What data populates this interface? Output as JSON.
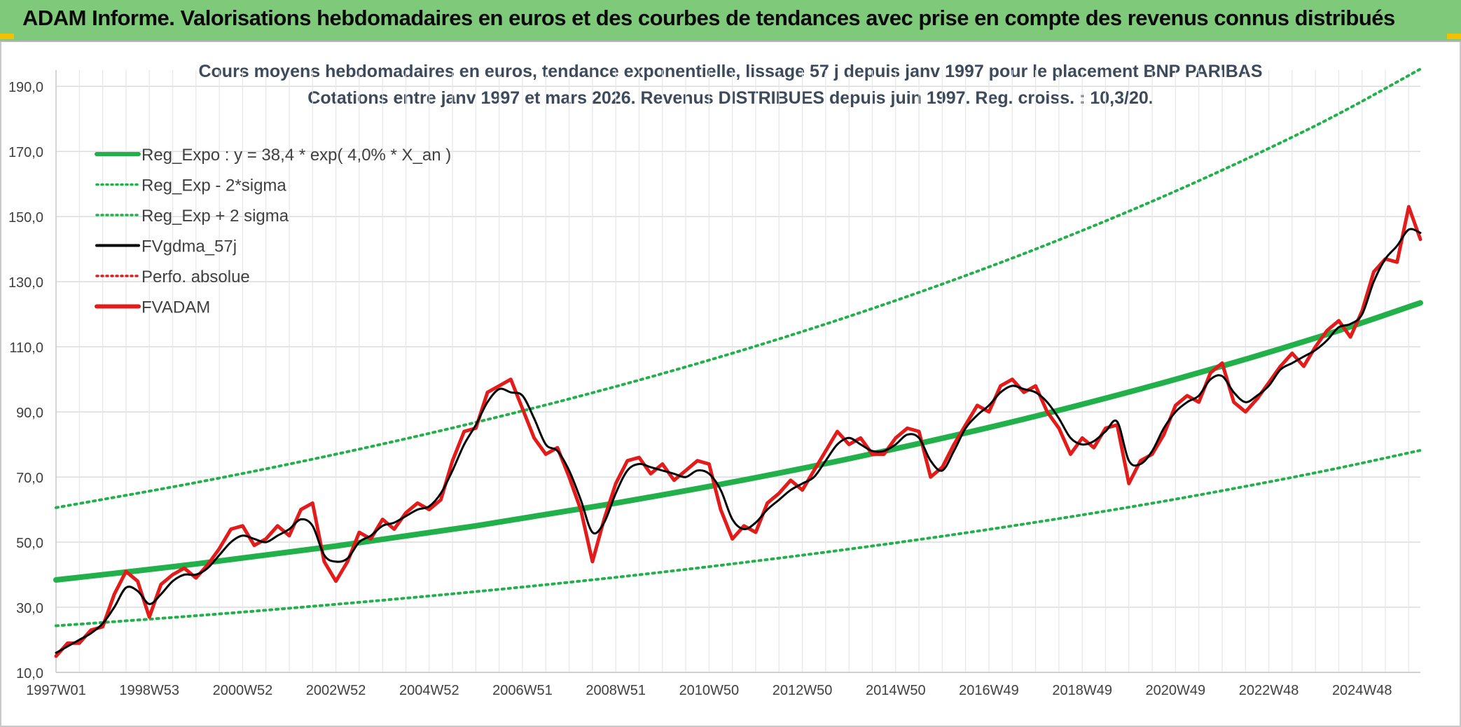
{
  "header": {
    "title": "ADAM Informe. Valorisations hebdomadaires en euros et des courbes de tendances avec prise en compte des revenus connus distribués"
  },
  "chart_data": {
    "type": "line",
    "title_lines": [
      "Cours moyens hebdomadaires en euros, tendance exponentielle, lissage 57 j depuis janv 1997 pour le placement BNP PARIBAS",
      "Cotations entre janv 1997 et mars 2026. Revenus DISTRIBUES depuis juin 1997. Reg. croiss. : 10,3/20."
    ],
    "xlabel": "",
    "ylabel": "",
    "ylim": [
      10,
      195
    ],
    "xlim": [
      1997.0,
      2026.25
    ],
    "y_ticks": [
      "10,0",
      "30,0",
      "50,0",
      "70,0",
      "90,0",
      "110,0",
      "130,0",
      "150,0",
      "170,0",
      "190,0"
    ],
    "y_tick_values": [
      10,
      30,
      50,
      70,
      90,
      110,
      130,
      150,
      170,
      190
    ],
    "x_ticks": [
      "1997W01",
      "1998W53",
      "2000W52",
      "2002W52",
      "2004W52",
      "2006W51",
      "2008W51",
      "2010W50",
      "2012W50",
      "2014W50",
      "2016W49",
      "2018W49",
      "2020W49",
      "2022W48",
      "2024W48"
    ],
    "x_tick_values": [
      1997.0,
      1999.0,
      2001.0,
      2003.0,
      2005.0,
      2007.0,
      2009.0,
      2011.0,
      2013.0,
      2015.0,
      2017.0,
      2019.0,
      2021.0,
      2023.0,
      2025.0
    ],
    "grid": true,
    "legend_position": "top-left",
    "legend": [
      {
        "label": "Reg_Expo : y = 38,4 * exp( 4,0% *  X_an )",
        "color": "#22b04b",
        "style": "thick"
      },
      {
        "label": "Reg_Exp - 2*sigma",
        "color": "#22b04b",
        "style": "dotted"
      },
      {
        "label": "Reg_Exp + 2 sigma",
        "color": "#22b04b",
        "style": "dotted"
      },
      {
        "label": "FVgdma_57j",
        "color": "#000000",
        "style": "solid"
      },
      {
        "label": "Perfo. absolue",
        "color": "#e31b1b",
        "style": "dotted"
      },
      {
        "label": "FVADAM",
        "color": "#e31b1b",
        "style": "thick"
      }
    ],
    "series": [
      {
        "name": "Reg_Expo : y = 38,4 * exp( 4,0% *  X_an )",
        "color": "#22b04b",
        "x": [
          1997.0,
          2000.0,
          2003.0,
          2006.0,
          2009.0,
          2012.0,
          2015.0,
          2018.0,
          2021.0,
          2024.0,
          2026.25
        ],
        "values": [
          38.4,
          43.3,
          48.8,
          55.0,
          62.0,
          69.8,
          78.7,
          88.7,
          100.0,
          112.7,
          123.5
        ]
      },
      {
        "name": "Reg_Exp - 2*sigma",
        "color": "#22b04b",
        "x": [
          1997.0,
          2000.0,
          2003.0,
          2006.0,
          2009.0,
          2012.0,
          2015.0,
          2018.0,
          2021.0,
          2024.0,
          2026.25
        ],
        "values": [
          24.3,
          27.4,
          30.9,
          34.8,
          39.2,
          44.2,
          49.8,
          56.1,
          63.2,
          71.3,
          78.2
        ]
      },
      {
        "name": "Reg_Exp + 2 sigma",
        "color": "#22b04b",
        "x": [
          1997.0,
          2000.0,
          2003.0,
          2006.0,
          2009.0,
          2012.0,
          2015.0,
          2018.0,
          2021.0,
          2024.0,
          2026.25
        ],
        "values": [
          60.6,
          68.3,
          77.0,
          86.8,
          97.8,
          110.2,
          124.2,
          140.0,
          157.8,
          177.9,
          195.3
        ]
      },
      {
        "name": "FVgdma_57j",
        "color": "#000000",
        "x": [
          1997.0,
          1997.25,
          1997.5,
          1997.75,
          1998.0,
          1998.25,
          1998.5,
          1998.75,
          1999.0,
          1999.25,
          1999.5,
          1999.75,
          2000.0,
          2000.25,
          2000.5,
          2000.75,
          2001.0,
          2001.25,
          2001.5,
          2001.75,
          2002.0,
          2002.25,
          2002.5,
          2002.75,
          2003.0,
          2003.25,
          2003.5,
          2003.75,
          2004.0,
          2004.25,
          2004.5,
          2004.75,
          2005.0,
          2005.25,
          2005.5,
          2005.75,
          2006.0,
          2006.25,
          2006.5,
          2006.75,
          2007.0,
          2007.25,
          2007.5,
          2007.75,
          2008.0,
          2008.25,
          2008.5,
          2008.75,
          2009.0,
          2009.25,
          2009.5,
          2009.75,
          2010.0,
          2010.25,
          2010.5,
          2010.75,
          2011.0,
          2011.25,
          2011.5,
          2011.75,
          2012.0,
          2012.25,
          2012.5,
          2012.75,
          2013.0,
          2013.25,
          2013.5,
          2013.75,
          2014.0,
          2014.25,
          2014.5,
          2014.75,
          2015.0,
          2015.25,
          2015.5,
          2015.75,
          2016.0,
          2016.25,
          2016.5,
          2016.75,
          2017.0,
          2017.25,
          2017.5,
          2017.75,
          2018.0,
          2018.25,
          2018.5,
          2018.75,
          2019.0,
          2019.25,
          2019.5,
          2019.75,
          2020.0,
          2020.25,
          2020.5,
          2020.75,
          2021.0,
          2021.25,
          2021.5,
          2021.75,
          2022.0,
          2022.25,
          2022.5,
          2022.75,
          2023.0,
          2023.25,
          2023.5,
          2023.75,
          2024.0,
          2024.25,
          2024.5,
          2024.75,
          2025.0,
          2025.25,
          2025.5,
          2025.75,
          2026.0,
          2026.25
        ],
        "values": [
          16,
          18,
          20,
          22,
          25,
          30,
          36,
          35,
          31,
          34,
          38,
          40,
          40,
          42,
          46,
          50,
          52,
          51,
          50,
          52,
          54,
          57,
          55,
          46,
          44,
          45,
          50,
          52,
          55,
          56,
          58,
          60,
          61,
          65,
          72,
          80,
          86,
          93,
          97,
          96,
          95,
          88,
          80,
          78,
          72,
          63,
          53,
          56,
          65,
          72,
          74,
          73,
          72,
          71,
          70,
          72,
          71,
          66,
          57,
          54,
          56,
          60,
          63,
          66,
          68,
          70,
          75,
          80,
          82,
          80,
          78,
          78,
          80,
          83,
          82,
          75,
          72,
          78,
          85,
          89,
          92,
          96,
          98,
          97,
          96,
          93,
          88,
          82,
          80,
          81,
          84,
          87,
          75,
          74,
          78,
          85,
          90,
          93,
          95,
          100,
          101,
          96,
          93,
          95,
          98,
          103,
          105,
          107,
          109,
          112,
          116,
          117,
          120,
          130,
          137,
          141,
          146,
          145
        ]
      },
      {
        "name": "FVADAM",
        "color": "#e31b1b",
        "x": [
          1997.0,
          1997.25,
          1997.5,
          1997.75,
          1998.0,
          1998.25,
          1998.5,
          1998.75,
          1999.0,
          1999.25,
          1999.5,
          1999.75,
          2000.0,
          2000.25,
          2000.5,
          2000.75,
          2001.0,
          2001.25,
          2001.5,
          2001.75,
          2002.0,
          2002.25,
          2002.5,
          2002.75,
          2003.0,
          2003.25,
          2003.5,
          2003.75,
          2004.0,
          2004.25,
          2004.5,
          2004.75,
          2005.0,
          2005.25,
          2005.5,
          2005.75,
          2006.0,
          2006.25,
          2006.5,
          2006.75,
          2007.0,
          2007.25,
          2007.5,
          2007.75,
          2008.0,
          2008.25,
          2008.5,
          2008.75,
          2009.0,
          2009.25,
          2009.5,
          2009.75,
          2010.0,
          2010.25,
          2010.5,
          2010.75,
          2011.0,
          2011.25,
          2011.5,
          2011.75,
          2012.0,
          2012.25,
          2012.5,
          2012.75,
          2013.0,
          2013.25,
          2013.5,
          2013.75,
          2014.0,
          2014.25,
          2014.5,
          2014.75,
          2015.0,
          2015.25,
          2015.5,
          2015.75,
          2016.0,
          2016.25,
          2016.5,
          2016.75,
          2017.0,
          2017.25,
          2017.5,
          2017.75,
          2018.0,
          2018.25,
          2018.5,
          2018.75,
          2019.0,
          2019.25,
          2019.5,
          2019.75,
          2020.0,
          2020.25,
          2020.5,
          2020.75,
          2021.0,
          2021.25,
          2021.5,
          2021.75,
          2022.0,
          2022.25,
          2022.5,
          2022.75,
          2023.0,
          2023.25,
          2023.5,
          2023.75,
          2024.0,
          2024.25,
          2024.5,
          2024.75,
          2025.0,
          2025.25,
          2025.5,
          2025.75,
          2026.0,
          2026.25
        ],
        "values": [
          15,
          19,
          19,
          23,
          24,
          34,
          41,
          38,
          27,
          37,
          40,
          42,
          39,
          43,
          48,
          54,
          55,
          49,
          51,
          55,
          52,
          60,
          62,
          44,
          38,
          44,
          53,
          51,
          57,
          54,
          59,
          62,
          60,
          63,
          75,
          84,
          85,
          96,
          98,
          100,
          91,
          82,
          77,
          79,
          70,
          60,
          44,
          57,
          68,
          75,
          76,
          71,
          74,
          69,
          72,
          75,
          74,
          60,
          51,
          55,
          53,
          62,
          65,
          69,
          66,
          72,
          78,
          84,
          80,
          82,
          77,
          77,
          82,
          85,
          84,
          70,
          73,
          80,
          86,
          92,
          90,
          98,
          100,
          96,
          98,
          90,
          85,
          77,
          82,
          79,
          85,
          86,
          68,
          75,
          77,
          83,
          92,
          95,
          93,
          102,
          105,
          93,
          90,
          94,
          99,
          104,
          108,
          104,
          110,
          115,
          118,
          113,
          121,
          133,
          137,
          136,
          153,
          143
        ]
      }
    ]
  }
}
